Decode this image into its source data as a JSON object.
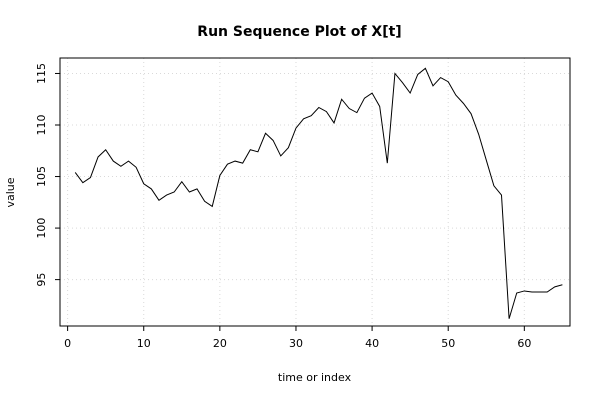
{
  "chart_data": {
    "type": "line",
    "title": "Run Sequence Plot of X[t]",
    "xlabel": "time or index",
    "ylabel": "value",
    "xlim": [
      -1,
      66
    ],
    "ylim": [
      90.5,
      116.5
    ],
    "xticks": [
      0,
      10,
      20,
      30,
      40,
      50,
      60
    ],
    "yticks": [
      95,
      100,
      105,
      110,
      115
    ],
    "grid": true,
    "series": [
      {
        "x": [
          1,
          2,
          3,
          4,
          5,
          6,
          7,
          8,
          9,
          10,
          11,
          12,
          13,
          14,
          15,
          16,
          17,
          18,
          19,
          20,
          21,
          22,
          23,
          24,
          25,
          26,
          27,
          28,
          29,
          30,
          31,
          32,
          33,
          34,
          35,
          36,
          37,
          38,
          39,
          40,
          41,
          42,
          43,
          44,
          45,
          46,
          47,
          48,
          49,
          50,
          51,
          52,
          53,
          54,
          55,
          56,
          57,
          58,
          59,
          60,
          61,
          62,
          63,
          64,
          65
        ],
        "values": [
          105.4,
          104.4,
          104.9,
          106.9,
          107.6,
          106.5,
          106.0,
          106.5,
          105.9,
          104.3,
          103.8,
          102.7,
          103.2,
          103.5,
          104.5,
          103.5,
          103.8,
          102.6,
          102.1,
          105.1,
          106.2,
          106.5,
          106.3,
          107.6,
          107.4,
          109.2,
          108.5,
          107.0,
          107.8,
          109.7,
          110.6,
          110.9,
          111.7,
          111.3,
          110.2,
          112.5,
          111.6,
          111.2,
          112.6,
          113.1,
          111.8,
          106.3,
          115.0,
          114.1,
          113.1,
          114.9,
          115.5,
          113.8,
          114.6,
          114.2,
          112.9,
          112.1,
          111.1,
          109.1,
          106.6,
          104.1,
          103.2,
          91.2,
          93.7,
          93.9,
          93.8,
          93.8,
          93.8,
          94.3,
          94.5
        ]
      }
    ]
  }
}
